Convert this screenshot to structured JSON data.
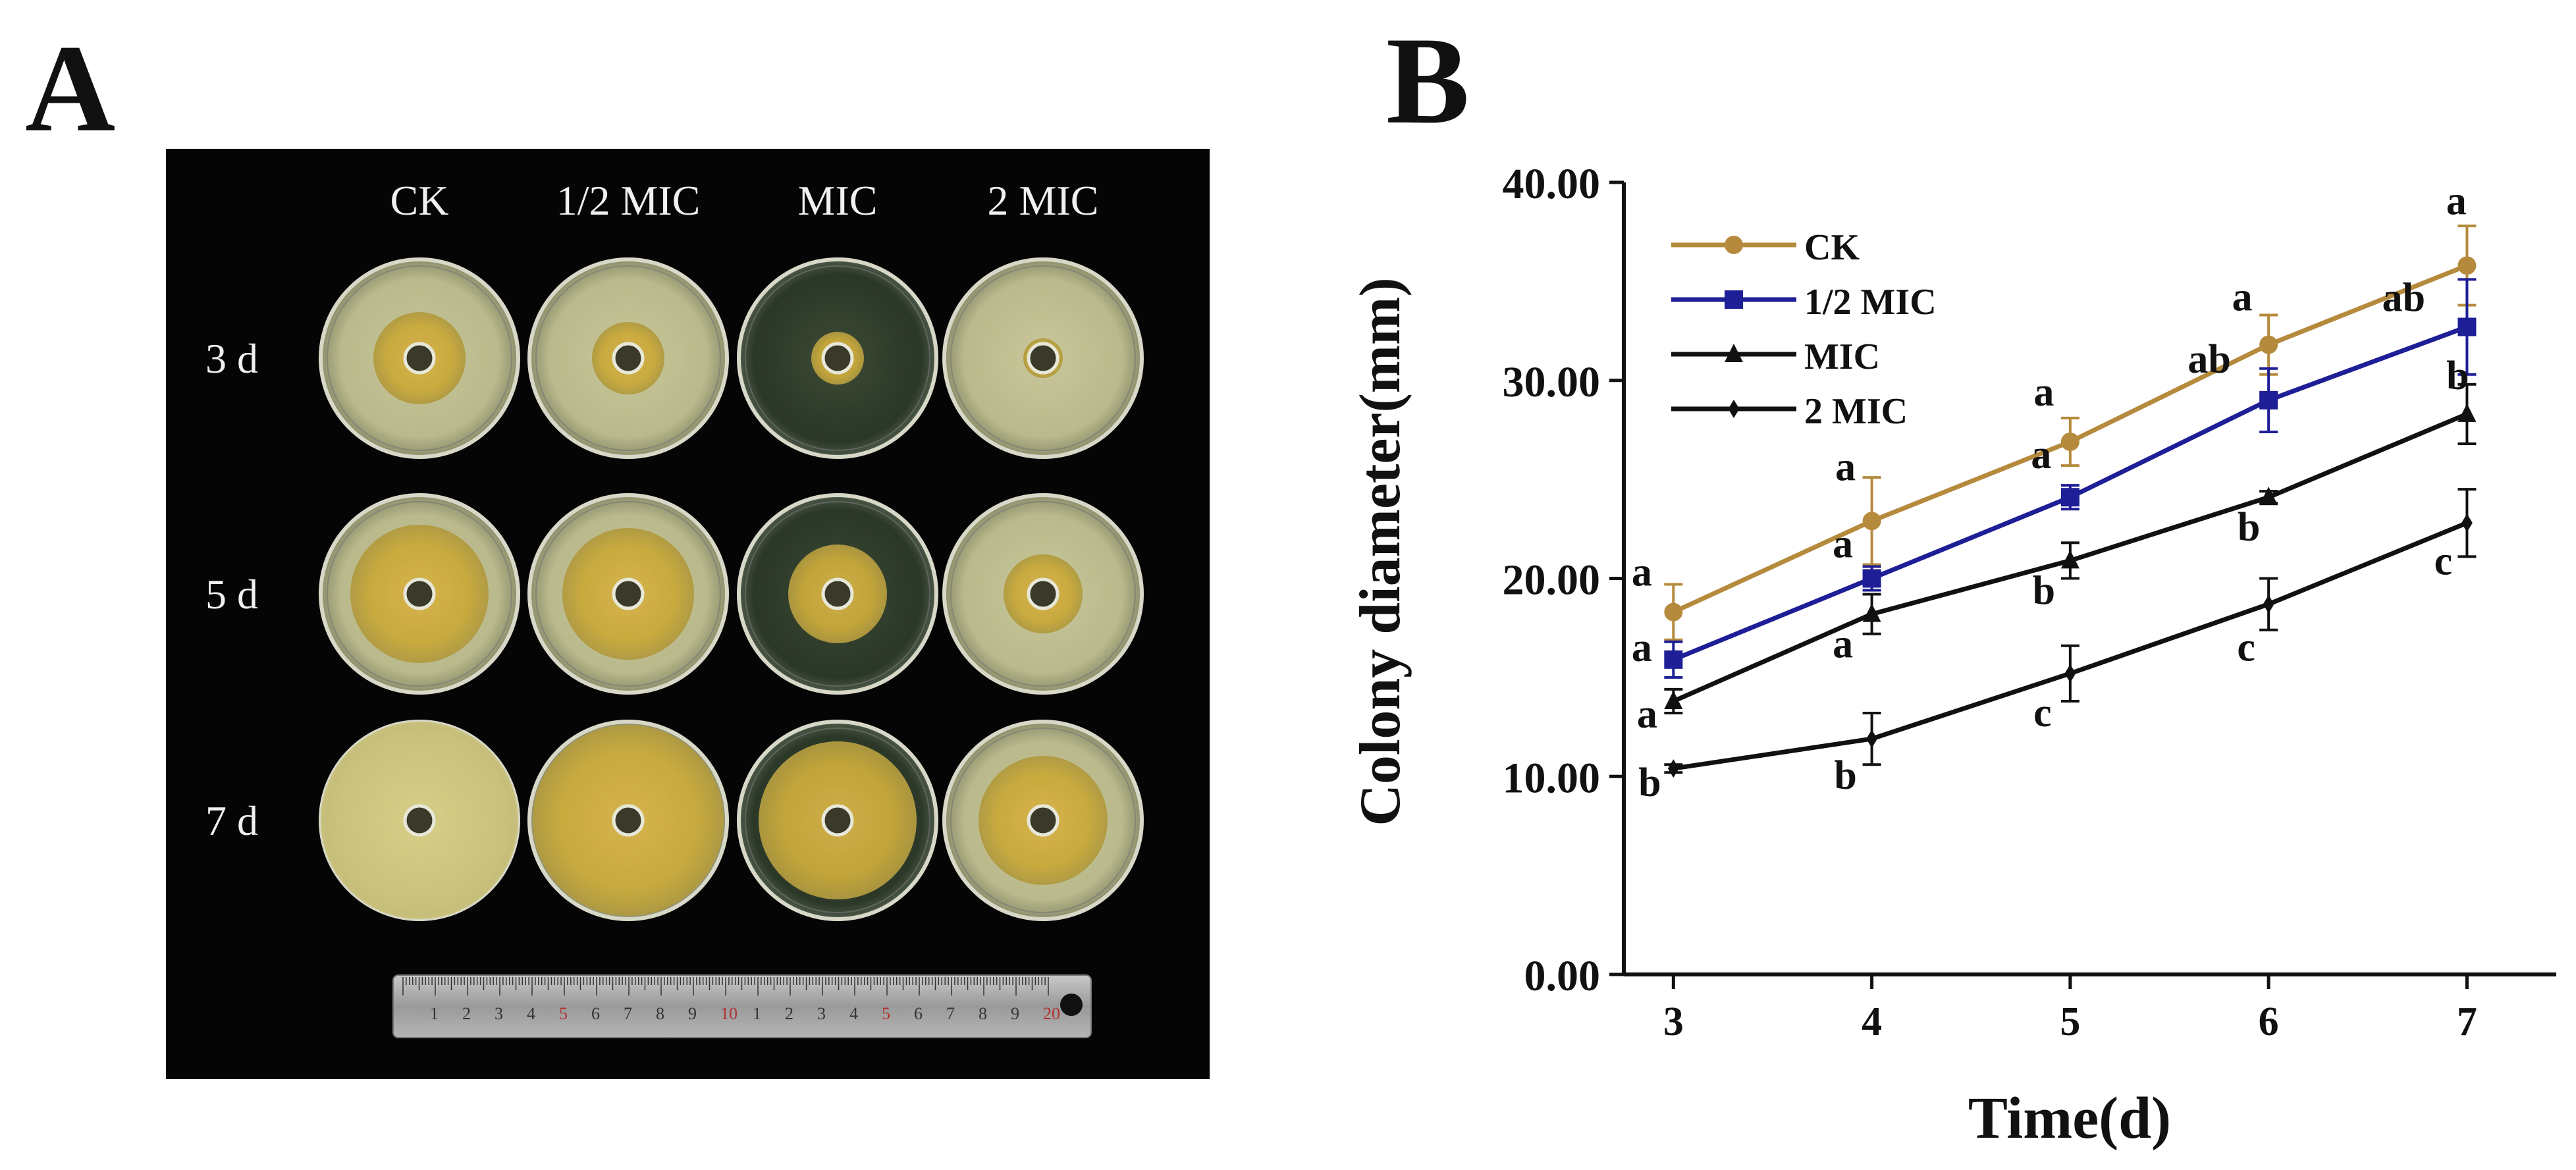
{
  "panels": {
    "a_label": "A",
    "b_label": "B"
  },
  "photo": {
    "columns": [
      "CK",
      "1/2 MIC",
      "MIC",
      "2 MIC"
    ],
    "rows": [
      "3 d",
      "5 d",
      "7 d"
    ],
    "ruler_numbers": [
      "1",
      "2",
      "3",
      "4",
      "5",
      "6",
      "7",
      "8",
      "9",
      "10",
      "1",
      "2",
      "3",
      "4",
      "5",
      "6",
      "7",
      "8",
      "9",
      "20"
    ]
  },
  "chart_data": {
    "type": "line",
    "title": "",
    "xlabel": "Time(d)",
    "ylabel": "Colony diameter(mm)",
    "x": [
      3,
      4,
      5,
      6,
      7
    ],
    "xlim": [
      2.75,
      7.45
    ],
    "ylim": [
      0,
      40
    ],
    "y_ticks": [
      "0.00",
      "10.00",
      "20.00",
      "30.00",
      "40.00"
    ],
    "x_ticks": [
      "3",
      "4",
      "5",
      "6",
      "7"
    ],
    "grid": false,
    "legend_position": "top-left",
    "series": [
      {
        "name": "CK",
        "marker": "circle",
        "color": "#b58a3c",
        "values": [
          18.3,
          22.9,
          26.9,
          31.8,
          35.8
        ],
        "errors": [
          1.4,
          2.2,
          1.2,
          1.5,
          2.0
        ],
        "letters": [
          "a",
          "a",
          "a",
          "a",
          "a"
        ]
      },
      {
        "name": "1/2 MIC",
        "marker": "square",
        "color": "#1e1e96",
        "values": [
          15.9,
          20.0,
          24.1,
          29.0,
          32.7
        ],
        "errors": [
          0.9,
          0.6,
          0.6,
          1.6,
          2.4
        ],
        "letters": [
          "a",
          "a",
          "a",
          "ab",
          "ab"
        ]
      },
      {
        "name": "MIC",
        "marker": "triangle",
        "color": "#111111",
        "values": [
          13.8,
          18.2,
          20.9,
          24.1,
          28.3
        ],
        "errors": [
          0.6,
          1.0,
          0.9,
          0.3,
          1.5
        ],
        "letters": [
          "a",
          "a",
          "b",
          "b",
          "b"
        ]
      },
      {
        "name": "2 MIC",
        "marker": "diamond",
        "color": "#111111",
        "values": [
          10.4,
          11.9,
          15.2,
          18.7,
          22.8
        ],
        "errors": [
          0.2,
          1.3,
          1.4,
          1.3,
          1.7
        ],
        "letters": [
          "b",
          "b",
          "c",
          "c",
          "c"
        ]
      }
    ]
  }
}
